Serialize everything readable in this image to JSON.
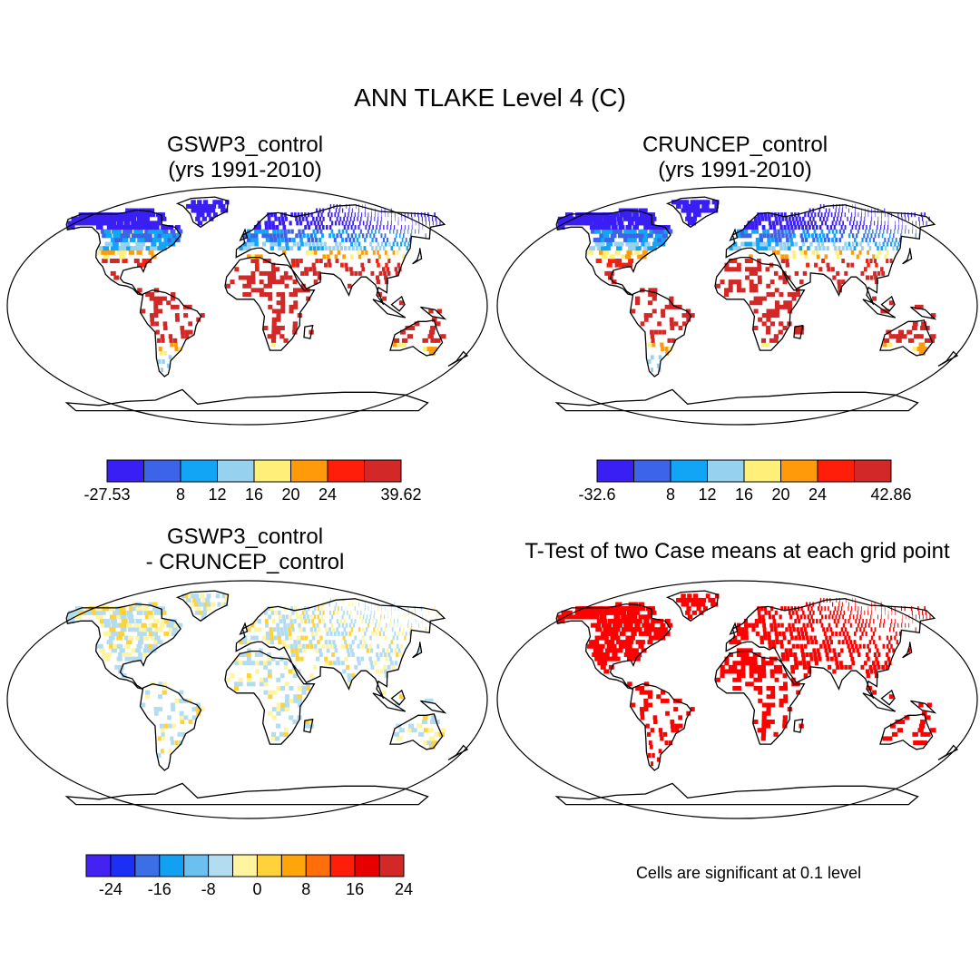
{
  "title": "ANN TLAKE Level 4 (C)",
  "colors": {
    "land_outline": "#000000",
    "scale_abs": [
      "#3a1ff5",
      "#3c64e8",
      "#12a5f5",
      "#96d2f0",
      "#fff07a",
      "#ff9a0a",
      "#ff1e0a",
      "#d22828"
    ],
    "scale_diff": [
      "#4422f2",
      "#1c30f5",
      "#3c6ee6",
      "#12a0f2",
      "#6cc0f0",
      "#b4dcf0",
      "#fff5a0",
      "#ffd23c",
      "#ffa50a",
      "#ff6e0a",
      "#ff1e0a",
      "#e60000",
      "#d22828"
    ],
    "sig": "#ff0000"
  },
  "chart_data": [
    {
      "type": "heatmap",
      "panel": "top-left",
      "title_lines": [
        "GSWP3_control",
        "(yrs 1991-2010)"
      ],
      "projection": "robinson",
      "colorbar": {
        "labels": [
          "-27.53",
          "8",
          "12",
          "16",
          "20",
          "24",
          "39.62"
        ],
        "label_slots": [
          0,
          2,
          3,
          4,
          5,
          6,
          8
        ],
        "bounds": [
          -27.53,
          8,
          12,
          16,
          20,
          24,
          39.62
        ]
      }
    },
    {
      "type": "heatmap",
      "panel": "top-right",
      "title_lines": [
        "CRUNCEP_control",
        "(yrs 1991-2010)"
      ],
      "projection": "robinson",
      "colorbar": {
        "labels": [
          "-32.6",
          "8",
          "12",
          "16",
          "20",
          "24",
          "42.86"
        ],
        "label_slots": [
          0,
          2,
          3,
          4,
          5,
          6,
          8
        ],
        "bounds": [
          -32.6,
          8,
          12,
          16,
          20,
          24,
          42.86
        ]
      }
    },
    {
      "type": "heatmap",
      "panel": "bottom-left",
      "title_lines": [
        "GSWP3_control",
        "- CRUNCEP_control"
      ],
      "projection": "robinson",
      "colorbar": {
        "labels": [
          "-24",
          "-16",
          "-8",
          "0",
          "8",
          "16",
          "24"
        ],
        "label_slots": [
          1,
          3,
          5,
          7,
          9,
          11,
          13
        ],
        "levels": [
          -28,
          -24,
          -20,
          -16,
          -12,
          -8,
          -4,
          0,
          4,
          8,
          12,
          16,
          20,
          24
        ]
      }
    },
    {
      "type": "heatmap",
      "panel": "bottom-right",
      "title_lines": [
        "T-Test of two Case means at each grid point"
      ],
      "projection": "robinson",
      "note": "Cells are significant at 0.1 level"
    }
  ]
}
